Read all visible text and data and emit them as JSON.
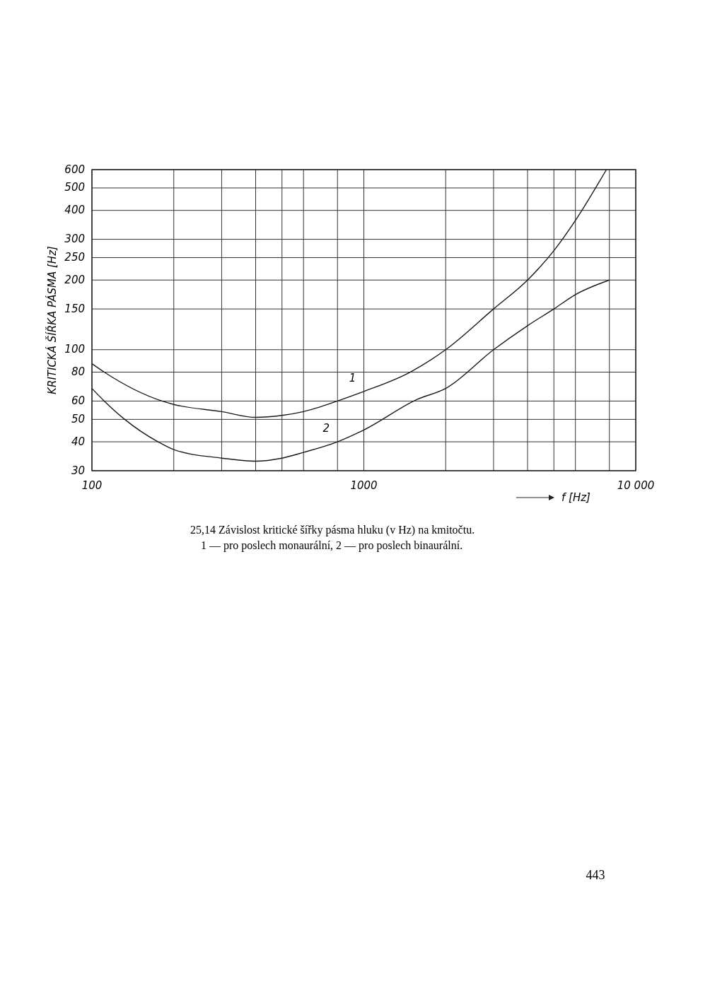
{
  "chart_data": {
    "type": "line",
    "title": "25,14 Závislost kritické šířky pásma hluku (v Hz) na kmitočtu.",
    "xlabel": "f [Hz]",
    "ylabel": "KRITICKÁ ŠÍŘKA PÁSMA [Hz]",
    "annotations": [
      "1 — pro poslech monaurální, 2 — pro poslech binaurální.",
      "443"
    ],
    "log": "xy",
    "grid": true,
    "xlim": [
      100,
      10000
    ],
    "ylim": [
      30,
      600
    ],
    "xticks": [
      100,
      {
        "value": 200,
        "label": null
      },
      {
        "value": 300,
        "label": null
      },
      {
        "value": 400,
        "label": null
      },
      {
        "value": 500,
        "label": null
      },
      {
        "value": 600,
        "label": null
      },
      {
        "value": 800,
        "label": null
      },
      1000,
      {
        "value": 2000,
        "label": null
      },
      {
        "value": 3000,
        "label": null
      },
      {
        "value": 4000,
        "label": null
      },
      {
        "value": 5000,
        "label": null
      },
      {
        "value": 6000,
        "label": null
      },
      {
        "value": 8000,
        "label": null
      },
      {
        "value": 10000,
        "label": "10 000"
      }
    ],
    "yticks": [
      30,
      40,
      50,
      60,
      80,
      100,
      150,
      200,
      250,
      300,
      400,
      500,
      600
    ],
    "series": [
      {
        "name": "1",
        "color": "#1a1a1a",
        "x": [
          100,
          111,
          181,
          200,
          300,
          400,
          500,
          600,
          800,
          1000,
          1480,
          2000,
          3000,
          4000,
          5000,
          6000,
          7800
        ],
        "values": [
          87,
          80,
          60,
          58,
          54,
          51,
          52,
          54,
          60,
          66,
          80,
          100,
          150,
          200,
          268,
          362,
          600
        ]
      },
      {
        "name": "2",
        "color": "#1a1a1a",
        "x": [
          100,
          111,
          132,
          175,
          200,
          300,
          400,
          500,
          600,
          800,
          1000,
          1570,
          2000,
          3000,
          4000,
          5000,
          6000,
          8000
        ],
        "values": [
          68,
          60,
          50,
          40,
          37,
          34,
          33,
          34,
          36,
          40,
          45,
          61,
          68,
          100,
          127,
          150,
          173,
          200
        ]
      }
    ]
  }
}
